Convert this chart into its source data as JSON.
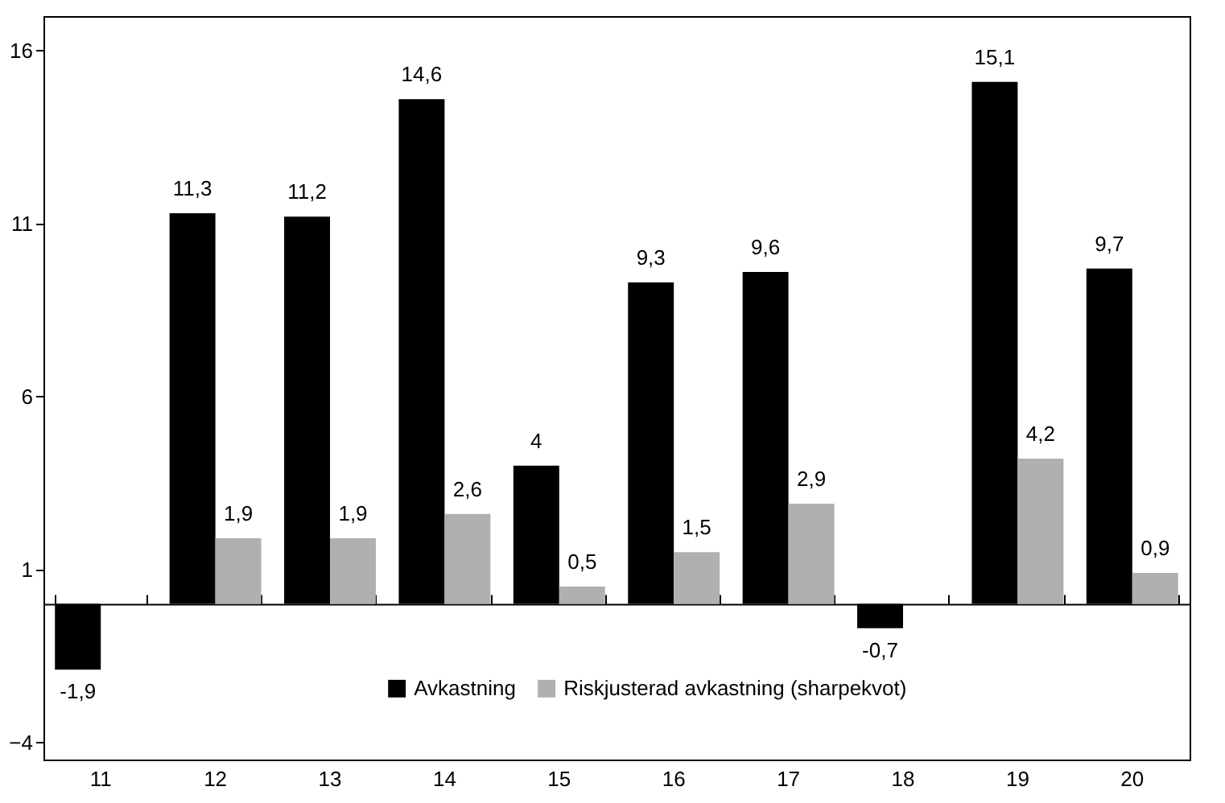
{
  "chart_data": {
    "type": "bar",
    "categories": [
      "11",
      "12",
      "13",
      "14",
      "15",
      "16",
      "17",
      "18",
      "19",
      "20"
    ],
    "series": [
      {
        "name": "Avkastning",
        "color": "#000000",
        "values": [
          -1.9,
          11.3,
          11.2,
          14.6,
          4,
          9.3,
          9.6,
          -0.7,
          15.1,
          9.7
        ],
        "value_labels": [
          "-1,9",
          "11,3",
          "11,2",
          "14,6",
          "4",
          "9,3",
          "9,6",
          "-0,7",
          "15,1",
          "9,7"
        ]
      },
      {
        "name": "Riskjusterad avkastning (sharpekvot)",
        "color": "#b0b0b0",
        "values": [
          null,
          1.9,
          1.9,
          2.6,
          0.5,
          1.5,
          2.9,
          null,
          4.2,
          0.9
        ],
        "value_labels": [
          null,
          "1,9",
          "1,9",
          "2,6",
          "0,5",
          "1,5",
          "2,9",
          null,
          "4,2",
          "0,9"
        ]
      }
    ],
    "ylim": [
      -4.5,
      17
    ],
    "yticks": [
      -4,
      1,
      6,
      11,
      16
    ],
    "grid": false,
    "legend": "bottom"
  }
}
